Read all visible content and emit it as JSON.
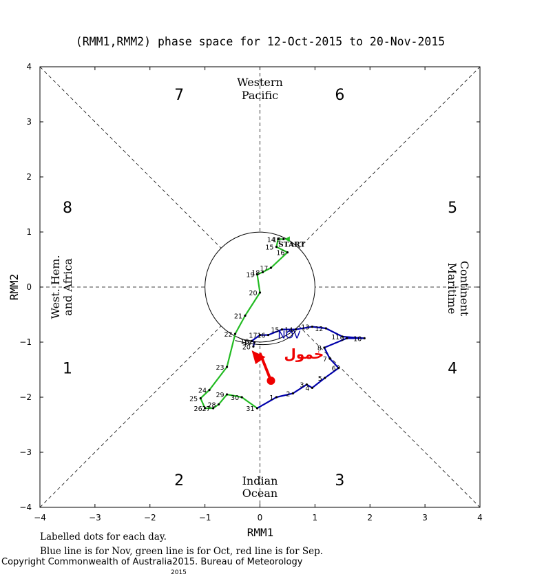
{
  "chart_data": {
    "type": "line",
    "title": "(RMM1,RMM2) phase space for 12-Oct-2015 to 20-Nov-2015",
    "xlabel": "RMM1",
    "ylabel": "RMM2",
    "xlim": [
      -4,
      4
    ],
    "ylim": [
      -4,
      4
    ],
    "x_ticks": [
      "−4",
      "−3",
      "−2",
      "−1",
      "0",
      "1",
      "2",
      "3",
      "4"
    ],
    "y_ticks": [
      "4",
      "3",
      "2",
      "1",
      "0",
      "−1",
      "−2",
      "−3",
      "−4"
    ],
    "phases": [
      {
        "label": "1",
        "x": -3.5,
        "y": -1.47
      },
      {
        "label": "2",
        "x": -1.47,
        "y": -3.5
      },
      {
        "label": "3",
        "x": 1.45,
        "y": -3.5
      },
      {
        "label": "4",
        "x": 3.5,
        "y": -1.47
      },
      {
        "label": "5",
        "x": 3.5,
        "y": 1.45
      },
      {
        "label": "6",
        "x": 1.45,
        "y": 3.5
      },
      {
        "label": "7",
        "x": -1.47,
        "y": 3.5
      },
      {
        "label": "8",
        "x": -3.5,
        "y": 1.45
      }
    ],
    "regions": {
      "top": [
        "Western",
        "Pacific"
      ],
      "bottom": [
        "Indian",
        "Ocean"
      ],
      "left": [
        "West. Hem.",
        "and Africa"
      ],
      "right": [
        "Maritime",
        "Continent"
      ]
    },
    "series": [
      {
        "name": "Oct",
        "color": "#22bb22",
        "points": [
          {
            "label": "13",
            "x": 0.43,
            "y": 0.87
          },
          {
            "label": "14",
            "x": 0.33,
            "y": 0.87
          },
          {
            "label": "15",
            "x": 0.3,
            "y": 0.73
          },
          {
            "label": "16",
            "x": 0.5,
            "y": 0.63
          },
          {
            "label": "17",
            "x": 0.2,
            "y": 0.35
          },
          {
            "label": "18",
            "x": 0.05,
            "y": 0.27
          },
          {
            "label": "19",
            "x": -0.05,
            "y": 0.23
          },
          {
            "label": "20",
            "x": 0.0,
            "y": -0.1
          },
          {
            "label": "21",
            "x": -0.27,
            "y": -0.52
          },
          {
            "label": "22",
            "x": -0.45,
            "y": -0.85
          },
          {
            "label": "23",
            "x": -0.6,
            "y": -1.45
          },
          {
            "label": "24",
            "x": -0.92,
            "y": -1.87
          },
          {
            "label": "25",
            "x": -1.08,
            "y": -2.02
          },
          {
            "label": "26",
            "x": -1.0,
            "y": -2.2
          },
          {
            "label": "27",
            "x": -0.85,
            "y": -2.2
          },
          {
            "label": "28",
            "x": -0.75,
            "y": -2.13
          },
          {
            "label": "29",
            "x": -0.6,
            "y": -1.95
          },
          {
            "label": "30",
            "x": -0.33,
            "y": -2.0
          },
          {
            "label": "31",
            "x": -0.05,
            "y": -2.2
          }
        ],
        "labels": [
          "START"
        ]
      },
      {
        "name": "Nov",
        "color": "#0000aa",
        "points": [
          {
            "label": "1",
            "x": 0.3,
            "y": -2.0
          },
          {
            "label": "2",
            "x": 0.6,
            "y": -1.93
          },
          {
            "label": "3",
            "x": 0.85,
            "y": -1.77
          },
          {
            "label": "4",
            "x": 0.95,
            "y": -1.83
          },
          {
            "label": "5",
            "x": 1.18,
            "y": -1.65
          },
          {
            "label": "6",
            "x": 1.43,
            "y": -1.47
          },
          {
            "label": "7",
            "x": 1.27,
            "y": -1.3
          },
          {
            "label": "8",
            "x": 1.17,
            "y": -1.1
          },
          {
            "label": "9",
            "x": 1.58,
            "y": -0.93
          },
          {
            "label": "10",
            "x": 1.9,
            "y": -0.93
          },
          {
            "label": "11",
            "x": 1.5,
            "y": -0.9
          },
          {
            "label": "12",
            "x": 1.2,
            "y": -0.75
          },
          {
            "label": "13",
            "x": 0.95,
            "y": -0.72
          },
          {
            "label": "14",
            "x": 0.65,
            "y": -0.77
          },
          {
            "label": "15",
            "x": 0.4,
            "y": -0.77
          },
          {
            "label": "16",
            "x": 0.15,
            "y": -0.87
          },
          {
            "label": "17",
            "x": 0.0,
            "y": -0.87
          },
          {
            "label": "18",
            "x": -0.15,
            "y": -0.98
          },
          {
            "label": "19",
            "x": -0.1,
            "y": -1.0
          },
          {
            "label": "20",
            "x": -0.12,
            "y": -1.08
          }
        ],
        "labels": [
          "NOV"
        ]
      }
    ],
    "annotation": {
      "text": "خمول",
      "color": "#ee0000"
    },
    "footnotes": [
      "Labelled dots for each day.",
      "Blue line is for Nov, green line is for Oct, red line is for Sep."
    ],
    "copyright": [
      "Copyright Commonwealth of Australia",
      "2015",
      ". Bureau of Meteorology",
      "2015"
    ]
  }
}
